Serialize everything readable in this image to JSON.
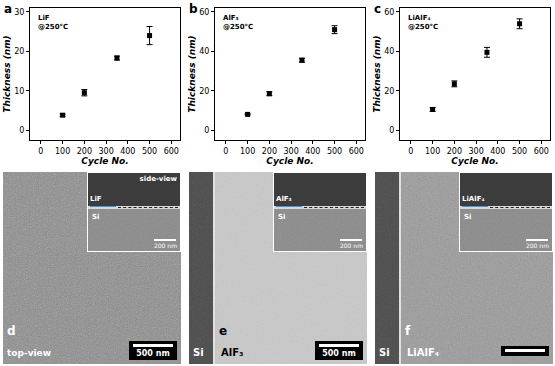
{
  "chart_data": [
    {
      "type": "scatter",
      "title": "a",
      "annotations": [
        "LiF",
        "@250°C"
      ],
      "x_label": "Cycle No.",
      "y_label": "Thickness (nm)",
      "xlim": [
        -50,
        640
      ],
      "xticks": [
        0,
        100,
        200,
        300,
        400,
        500,
        600
      ],
      "ylim": [
        -2.5,
        31
      ],
      "yticks": [
        0,
        10,
        20,
        30
      ],
      "grid": false,
      "series": [
        {
          "color": "#000000",
          "marker": "square",
          "x": [
            100,
            200,
            350,
            500
          ],
          "values": [
            3.8,
            9.5,
            18.3,
            24
          ],
          "errors": [
            0.3,
            0.8,
            0.5,
            2.3
          ]
        }
      ]
    },
    {
      "type": "scatter",
      "title": "b",
      "annotations": [
        "AlF₃",
        "@250°C"
      ],
      "x_label": "Cycle No.",
      "y_label": "Thickness (nm)",
      "xlim": [
        -50,
        640
      ],
      "xticks": [
        0,
        100,
        200,
        300,
        400,
        500,
        600
      ],
      "ylim": [
        -5,
        62
      ],
      "yticks": [
        0,
        20,
        40,
        60
      ],
      "grid": false,
      "series": [
        {
          "color": "#000000",
          "marker": "square",
          "x": [
            100,
            200,
            350,
            500
          ],
          "values": [
            8,
            18.5,
            35.5,
            51
          ],
          "errors": [
            0.3,
            1,
            1,
            2
          ]
        }
      ]
    },
    {
      "type": "scatter",
      "title": "c",
      "annotations": [
        "LiAlF₄",
        "@250°C"
      ],
      "x_label": "Cycle No.",
      "y_label": "Thickness (nm)",
      "xlim": [
        -50,
        640
      ],
      "xticks": [
        0,
        100,
        200,
        300,
        400,
        500,
        600
      ],
      "ylim": [
        -5,
        62
      ],
      "yticks": [
        0,
        20,
        40,
        60
      ],
      "grid": false,
      "series": [
        {
          "color": "#000000",
          "marker": "square",
          "x": [
            100,
            200,
            350,
            500
          ],
          "values": [
            10.5,
            23.5,
            39.5,
            54
          ],
          "errors": [
            1,
            1.5,
            2.5,
            2.5
          ]
        }
      ]
    }
  ],
  "sem_panels": [
    {
      "label": "d",
      "view": "top-view",
      "scale": "500 nm",
      "inset": {
        "view": "side-view",
        "film": "LiF",
        "substrate": "Si",
        "scale": "200 nm"
      }
    },
    {
      "label": "e",
      "regions": [
        "Si",
        "AlF₃"
      ],
      "scale": "500 nm",
      "inset": {
        "film": "AlF₃",
        "substrate": "Si",
        "scale": "200 nm"
      }
    },
    {
      "label": "f",
      "regions": [
        "Si",
        "LiAlF₄"
      ],
      "inset": {
        "film": "LiAlF₄",
        "substrate": "Si",
        "scale": "200 nm"
      }
    }
  ]
}
